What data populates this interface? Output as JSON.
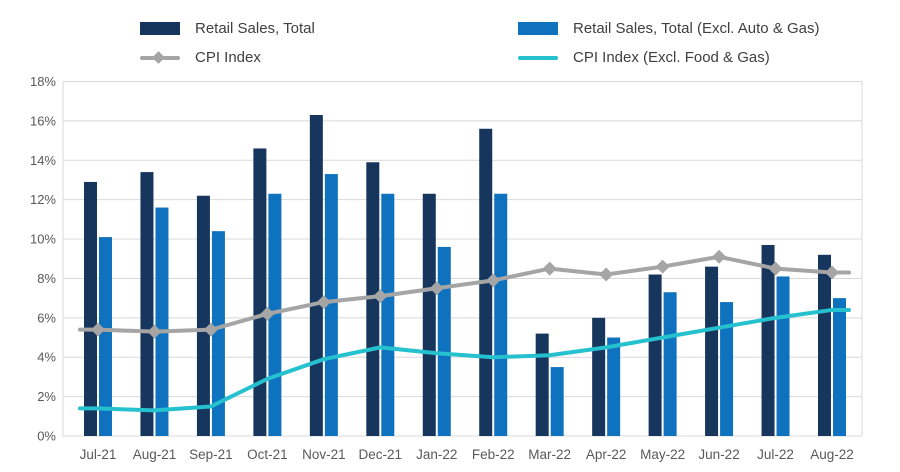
{
  "chart_data": {
    "type": "combo-bar-line",
    "categories": [
      "Jul-21",
      "Aug-21",
      "Sep-21",
      "Oct-21",
      "Nov-21",
      "Dec-21",
      "Jan-22",
      "Feb-22",
      "Mar-22",
      "Apr-22",
      "May-22",
      "Jun-22",
      "Jul-22",
      "Aug-22"
    ],
    "series": [
      {
        "name": "Retail Sales, Total",
        "type": "bar",
        "color": "#17365d",
        "values": [
          12.9,
          13.4,
          12.2,
          14.6,
          16.3,
          13.9,
          12.3,
          15.6,
          5.2,
          6.0,
          8.2,
          8.6,
          9.7,
          9.2
        ]
      },
      {
        "name": "Retail Sales, Total (Excl. Auto & Gas)",
        "type": "bar",
        "color": "#0f72bf",
        "values": [
          10.1,
          11.6,
          10.4,
          12.3,
          13.3,
          12.3,
          9.6,
          12.3,
          3.5,
          5.0,
          7.3,
          6.8,
          8.1,
          7.0
        ]
      },
      {
        "name": "CPI Index",
        "type": "line",
        "marker": "diamond",
        "color": "#a5a5a5",
        "values": [
          5.4,
          5.3,
          5.4,
          6.2,
          6.8,
          7.1,
          7.5,
          7.9,
          8.5,
          8.2,
          8.6,
          9.1,
          8.5,
          8.3
        ]
      },
      {
        "name": "CPI Index (Excl. Food & Gas)",
        "type": "line",
        "marker": "none",
        "color": "#26c1ce",
        "values": [
          1.4,
          1.3,
          1.5,
          2.9,
          3.9,
          4.5,
          4.2,
          4.0,
          4.1,
          4.5,
          5.0,
          5.5,
          6.0,
          6.4
        ]
      }
    ],
    "title": "",
    "xlabel": "",
    "ylabel": "",
    "ylim": [
      0,
      18
    ],
    "ytick_step": 2,
    "ytick_suffix": "%",
    "grid": true,
    "legend_position": "top"
  },
  "colors": {
    "grid": "#d9d9d9",
    "axis_text": "#595959",
    "legend_text": "#3f3f3f",
    "background": "#ffffff"
  }
}
